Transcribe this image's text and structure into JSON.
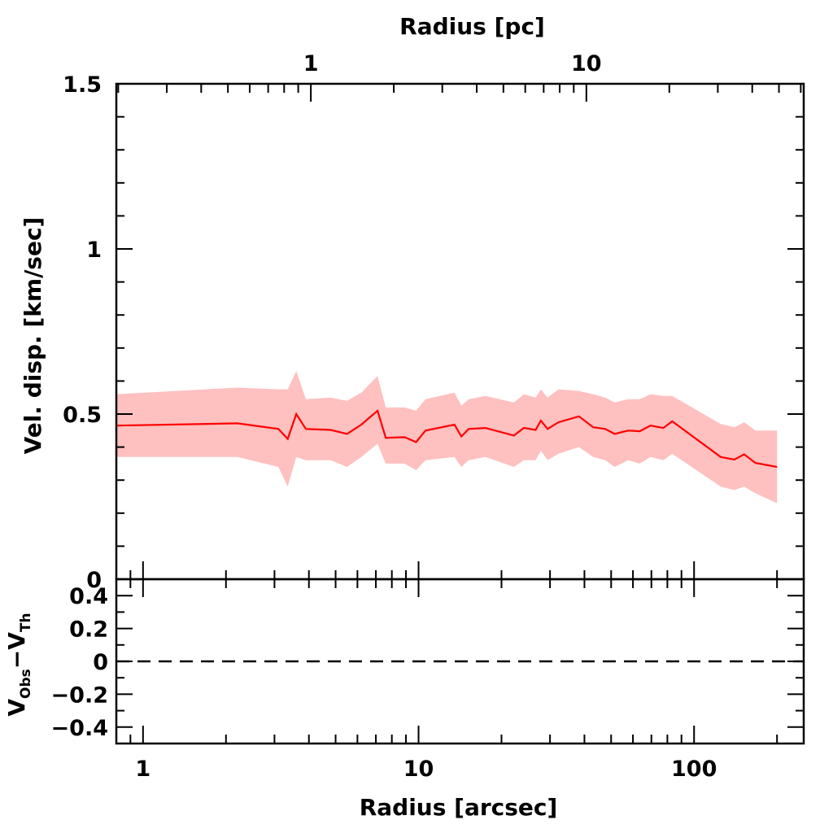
{
  "chart_data": [
    {
      "type": "area",
      "panel": "main",
      "xlabel": "Radius [arcsec]",
      "x2label": "Radius [pc]",
      "ylabel": "Vel. disp. [km/sec]",
      "xscale": "log",
      "x2scale": "log",
      "xlim": [
        0.8,
        250
      ],
      "ylim": [
        0,
        1.5
      ],
      "x2_ticks": [
        "1",
        "10"
      ],
      "x2_tick_values": [
        1,
        10
      ],
      "y_ticks": [
        "0",
        "0.5",
        "1",
        "1.5"
      ],
      "y_tick_values": [
        0,
        0.5,
        1,
        1.5
      ],
      "series": [
        {
          "color": "#ff0000",
          "band_color": "#ffc0c0",
          "x": [
            0.8,
            2.2,
            3.1,
            3.35,
            3.6,
            3.9,
            4.8,
            5.5,
            6.2,
            7.1,
            7.6,
            8.9,
            9.8,
            10.6,
            13.5,
            14.3,
            15.2,
            17.5,
            22.2,
            24.1,
            26.6,
            27.8,
            29.4,
            32.2,
            38.2,
            43.0,
            47.6,
            51.5,
            57.6,
            63.5,
            69.5,
            77.4,
            83.3,
            125,
            140,
            152,
            167,
            200
          ],
          "y": [
            0.465,
            0.472,
            0.455,
            0.425,
            0.5,
            0.455,
            0.452,
            0.44,
            0.468,
            0.51,
            0.428,
            0.43,
            0.415,
            0.45,
            0.468,
            0.432,
            0.455,
            0.458,
            0.435,
            0.458,
            0.452,
            0.48,
            0.455,
            0.475,
            0.493,
            0.46,
            0.455,
            0.44,
            0.45,
            0.448,
            0.465,
            0.458,
            0.478,
            0.37,
            0.362,
            0.378,
            0.352,
            0.34
          ],
          "upper": [
            0.56,
            0.58,
            0.575,
            0.575,
            0.63,
            0.545,
            0.55,
            0.54,
            0.565,
            0.615,
            0.52,
            0.52,
            0.51,
            0.545,
            0.565,
            0.525,
            0.545,
            0.555,
            0.535,
            0.56,
            0.55,
            0.575,
            0.55,
            0.575,
            0.57,
            0.56,
            0.55,
            0.535,
            0.545,
            0.545,
            0.56,
            0.555,
            0.555,
            0.47,
            0.46,
            0.475,
            0.45,
            0.45
          ],
          "lower": [
            0.37,
            0.37,
            0.34,
            0.28,
            0.37,
            0.36,
            0.36,
            0.34,
            0.37,
            0.41,
            0.35,
            0.35,
            0.33,
            0.36,
            0.37,
            0.34,
            0.36,
            0.37,
            0.34,
            0.36,
            0.36,
            0.39,
            0.36,
            0.38,
            0.4,
            0.37,
            0.36,
            0.34,
            0.36,
            0.35,
            0.37,
            0.36,
            0.38,
            0.28,
            0.27,
            0.28,
            0.26,
            0.23
          ]
        }
      ]
    },
    {
      "type": "line",
      "panel": "residual",
      "xlabel": "Radius [arcsec]",
      "ylabel_main": "V",
      "ylabel_sub1": "Obs",
      "ylabel_sep": "−V",
      "ylabel_sub2": "Th",
      "xscale": "log",
      "xlim": [
        0.8,
        250
      ],
      "ylim": [
        -0.5,
        0.5
      ],
      "x_ticks": [
        "1",
        "10",
        "100"
      ],
      "x_tick_values": [
        1,
        10,
        100
      ],
      "y_ticks": [
        "0.4",
        "0.2",
        "0",
        "−0.2",
        "−0.4"
      ],
      "y_tick_values": [
        0.4,
        0.2,
        0,
        -0.2,
        -0.4
      ],
      "reference_line": {
        "y": 0,
        "style": "dashed"
      }
    }
  ]
}
